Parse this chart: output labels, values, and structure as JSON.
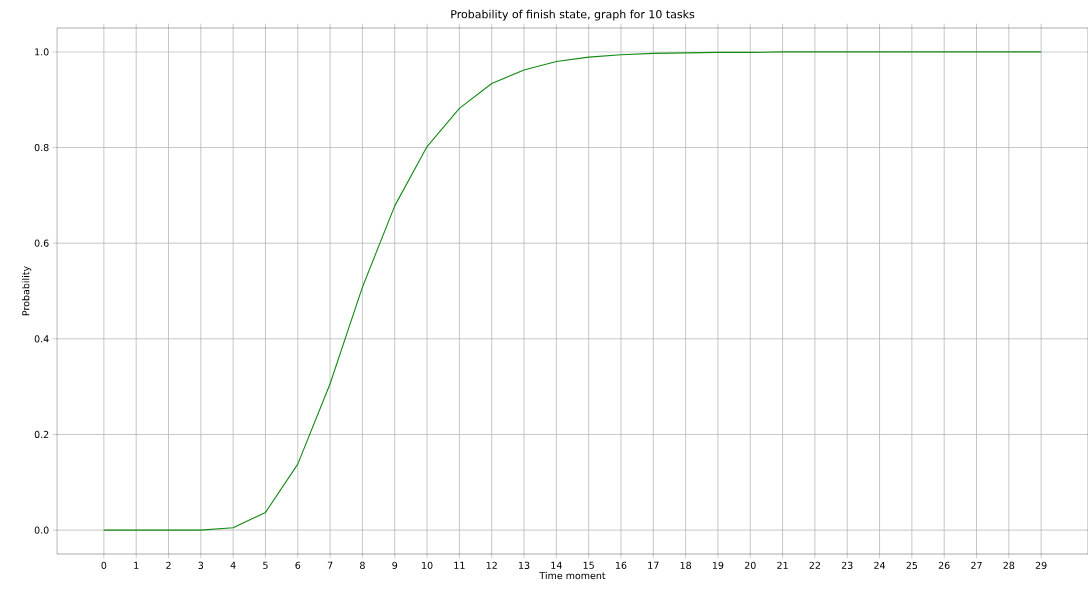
{
  "chart_data": {
    "type": "line",
    "title": "Probability of finish state, graph for 10 tasks",
    "xlabel": "Time moment",
    "ylabel": "Probability",
    "x": [
      0,
      1,
      2,
      3,
      4,
      5,
      6,
      7,
      8,
      9,
      10,
      11,
      12,
      13,
      14,
      15,
      16,
      17,
      18,
      19,
      20,
      21,
      22,
      23,
      24,
      25,
      26,
      27,
      28,
      29
    ],
    "series": [
      {
        "color": "#138a13",
        "values": [
          0,
          0,
          0,
          0,
          0.005,
          0.037,
          0.138,
          0.306,
          0.508,
          0.678,
          0.802,
          0.882,
          0.934,
          0.962,
          0.98,
          0.989,
          0.994,
          0.997,
          0.998,
          0.999,
          0.999,
          1.0,
          1.0,
          1.0,
          1.0,
          1.0,
          1.0,
          1.0,
          1.0,
          1.0
        ]
      }
    ],
    "xlim": [
      -1.45,
      30.45
    ],
    "ylim": [
      -0.05,
      1.05
    ],
    "xticks": [
      0,
      1,
      2,
      3,
      4,
      5,
      6,
      7,
      8,
      9,
      10,
      11,
      12,
      13,
      14,
      15,
      16,
      17,
      18,
      19,
      20,
      21,
      22,
      23,
      24,
      25,
      26,
      27,
      28,
      29
    ],
    "yticks": [
      {
        "value": 0,
        "label": "0.0"
      },
      {
        "value": 0.2,
        "label": "0.2"
      },
      {
        "value": 0.4,
        "label": "0.4"
      },
      {
        "value": 0.6,
        "label": "0.6"
      },
      {
        "value": 0.8,
        "label": "0.8"
      },
      {
        "value": 1.0,
        "label": "1.0"
      }
    ],
    "grid": true
  }
}
